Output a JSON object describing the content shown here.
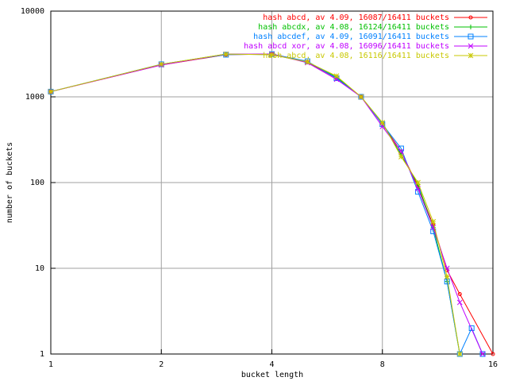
{
  "chart_data": {
    "type": "line",
    "xlabel": "bucket length",
    "ylabel": "number of buckets",
    "xscale": "log",
    "yscale": "log",
    "grid": true,
    "legend": "top-right",
    "xlim": [
      1,
      16
    ],
    "xticks": [
      1,
      2,
      4,
      8,
      16
    ],
    "ylim": [
      1,
      10000
    ],
    "yticks": [
      1,
      10,
      100,
      1000,
      10000
    ],
    "series": [
      {
        "name": "hash abcd, av 4.09, 16087/16411 buckets",
        "color": "#ff0000",
        "marker": "circle",
        "x": [
          1,
          2,
          3,
          4,
          5,
          6,
          7,
          8,
          9,
          10,
          11,
          12,
          13,
          16
        ],
        "values": [
          1150,
          2350,
          3100,
          3150,
          2550,
          1650,
          1000,
          480,
          230,
          90,
          32,
          9.5,
          5,
          1
        ]
      },
      {
        "name": "hash abcdx, av 4.08, 16124/16411 buckets",
        "color": "#00c000",
        "marker": "plus",
        "x": [
          1,
          2,
          3,
          4,
          5,
          6,
          7,
          8,
          9,
          10,
          11,
          12,
          13
        ],
        "values": [
          1150,
          2400,
          3150,
          3100,
          2550,
          1700,
          1000,
          500,
          210,
          95,
          30,
          7,
          1
        ]
      },
      {
        "name": "hash abcdef, av 4.09, 16091/16411 buckets",
        "color": "#0080ff",
        "marker": "square",
        "x": [
          1,
          2,
          3,
          4,
          5,
          6,
          7,
          8,
          9,
          10,
          11,
          12,
          13,
          14,
          15
        ],
        "values": [
          1150,
          2400,
          3100,
          3150,
          2600,
          1650,
          1000,
          480,
          250,
          78,
          27,
          7,
          1,
          2,
          1
        ]
      },
      {
        "name": "hash abcd xor, av 4.08, 16096/16411 buckets",
        "color": "#c000ff",
        "marker": "cross",
        "x": [
          1,
          2,
          3,
          4,
          5,
          6,
          7,
          8,
          9,
          10,
          11,
          12,
          13,
          15
        ],
        "values": [
          1150,
          2350,
          3150,
          3150,
          2500,
          1600,
          1000,
          450,
          230,
          85,
          30,
          10,
          4,
          1
        ]
      },
      {
        "name": "hash abcd, av 4.08, 16116/16411 buckets",
        "color": "#c8c800",
        "marker": "star",
        "x": [
          1,
          2,
          3,
          4,
          5,
          6,
          7,
          8,
          9,
          10,
          11,
          12,
          13
        ],
        "values": [
          1150,
          2400,
          3150,
          3100,
          2550,
          1750,
          1000,
          500,
          200,
          100,
          35,
          8,
          1
        ]
      }
    ]
  }
}
